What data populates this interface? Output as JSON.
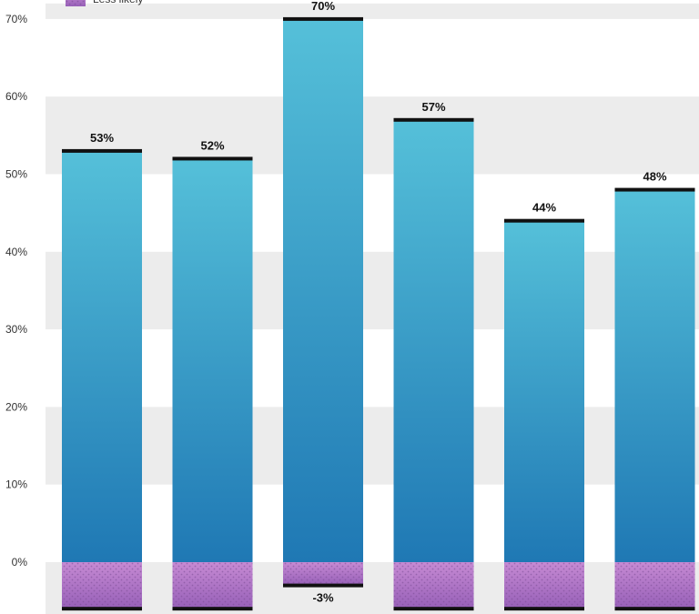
{
  "chart_data": {
    "type": "bar",
    "categories": [
      "",
      "",
      "",
      "",
      "",
      ""
    ],
    "series": [
      {
        "name": "",
        "values": [
          53,
          52,
          70,
          57,
          44,
          48
        ],
        "color_top": "#55c0d9",
        "color_bottom": "#1f78b4"
      },
      {
        "name": "Less likely",
        "values": [
          -6,
          -6,
          -3,
          -6,
          -6,
          -6
        ],
        "color_top": "#c68ad3",
        "color_bottom": "#9760b8"
      }
    ],
    "value_labels": [
      "53%",
      "52%",
      "70%",
      "57%",
      "44%",
      "48%"
    ],
    "negative_value_labels": [
      "",
      "",
      "-3%",
      "",
      "",
      ""
    ],
    "yticks": [
      "0%",
      "10%",
      "20%",
      "30%",
      "40%",
      "50%",
      "60%",
      "70%"
    ],
    "ylim": [
      -7,
      72
    ],
    "title": "",
    "xlabel": "",
    "ylabel": "",
    "grid": "alternating horizontal bands",
    "band_color": "#ececec",
    "legend": {
      "placement": "top-left",
      "entries": [
        "Less likely"
      ]
    }
  }
}
